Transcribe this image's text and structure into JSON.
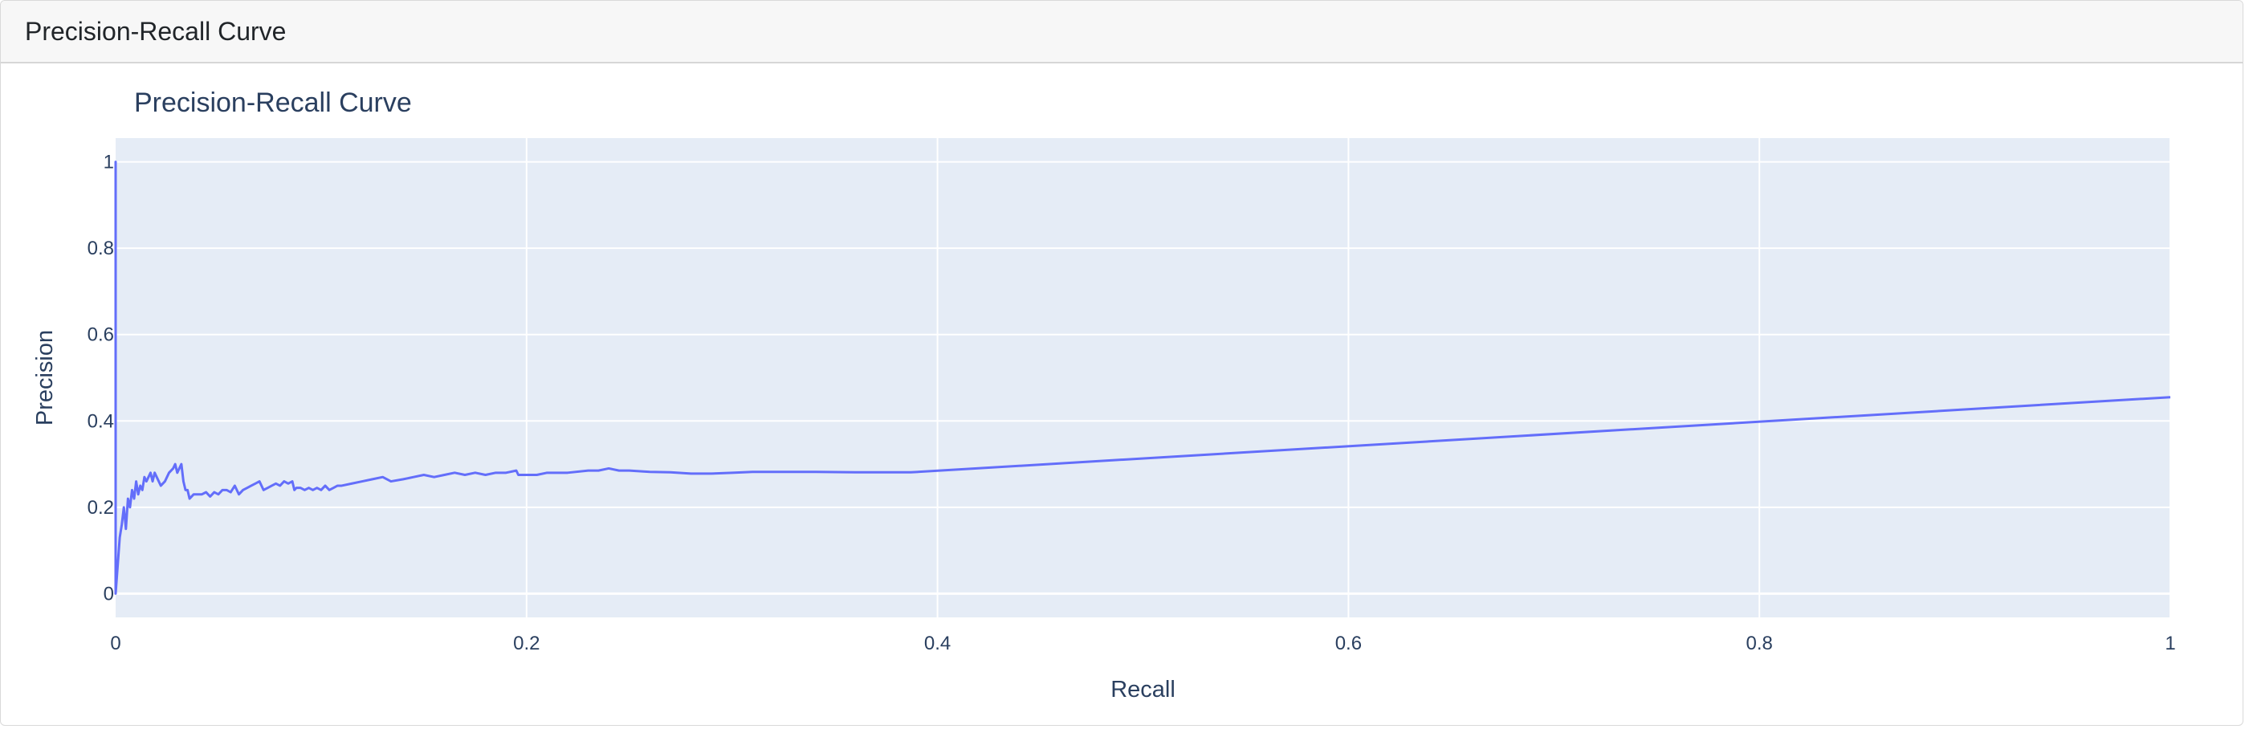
{
  "header": {
    "title": "Precision-Recall Curve"
  },
  "colors": {
    "plot_bg": "#e5ecf6",
    "grid": "#ffffff",
    "line": "#636efa",
    "text": "#2a3f5f"
  },
  "chart_data": {
    "type": "line",
    "title": "Precision-Recall Curve",
    "xlabel": "Recall",
    "ylabel": "Precision",
    "xlim": [
      0,
      1
    ],
    "ylim": [
      -0.055,
      1.055
    ],
    "grid": true,
    "xticks": [
      {
        "value": 0,
        "label": "0"
      },
      {
        "value": 0.2,
        "label": "0.2"
      },
      {
        "value": 0.4,
        "label": "0.4"
      },
      {
        "value": 0.6,
        "label": "0.6"
      },
      {
        "value": 0.8,
        "label": "0.8"
      },
      {
        "value": 1,
        "label": "1"
      }
    ],
    "yticks": [
      {
        "value": 0,
        "label": "0"
      },
      {
        "value": 0.2,
        "label": "0.2"
      },
      {
        "value": 0.4,
        "label": "0.4"
      },
      {
        "value": 0.6,
        "label": "0.6"
      },
      {
        "value": 0.8,
        "label": "0.8"
      },
      {
        "value": 1,
        "label": "1"
      }
    ],
    "series": [
      {
        "x": [
          0,
          0,
          0,
          0.002,
          0.003,
          0.004,
          0.005,
          0.006,
          0.007,
          0.008,
          0.009,
          0.01,
          0.011,
          0.012,
          0.013,
          0.014,
          0.015,
          0.016,
          0.017,
          0.018,
          0.019,
          0.02,
          0.021,
          0.022,
          0.024,
          0.026,
          0.028,
          0.029,
          0.03,
          0.031,
          0.032,
          0.033,
          0.034,
          0.035,
          0.036,
          0.038,
          0.04,
          0.042,
          0.044,
          0.046,
          0.048,
          0.05,
          0.052,
          0.054,
          0.056,
          0.058,
          0.06,
          0.062,
          0.064,
          0.066,
          0.068,
          0.07,
          0.072,
          0.074,
          0.076,
          0.078,
          0.08,
          0.082,
          0.084,
          0.086,
          0.087,
          0.088,
          0.09,
          0.092,
          0.094,
          0.096,
          0.098,
          0.1,
          0.102,
          0.104,
          0.106,
          0.108,
          0.11,
          0.115,
          0.12,
          0.125,
          0.13,
          0.134,
          0.14,
          0.145,
          0.15,
          0.155,
          0.16,
          0.165,
          0.17,
          0.175,
          0.18,
          0.185,
          0.19,
          0.195,
          0.196,
          0.2,
          0.205,
          0.21,
          0.22,
          0.23,
          0.235,
          0.24,
          0.245,
          0.25,
          0.26,
          0.27,
          0.28,
          0.29,
          0.3,
          0.31,
          0.32,
          0.34,
          0.36,
          0.387,
          1.0
        ],
        "y": [
          0,
          1.0,
          0.0,
          0.13,
          0.16,
          0.2,
          0.15,
          0.22,
          0.2,
          0.24,
          0.22,
          0.26,
          0.23,
          0.25,
          0.24,
          0.27,
          0.26,
          0.27,
          0.28,
          0.26,
          0.28,
          0.27,
          0.26,
          0.25,
          0.26,
          0.28,
          0.29,
          0.3,
          0.28,
          0.29,
          0.3,
          0.26,
          0.24,
          0.24,
          0.22,
          0.23,
          0.23,
          0.23,
          0.235,
          0.225,
          0.235,
          0.23,
          0.24,
          0.24,
          0.235,
          0.25,
          0.23,
          0.24,
          0.245,
          0.25,
          0.255,
          0.26,
          0.24,
          0.245,
          0.25,
          0.255,
          0.25,
          0.26,
          0.255,
          0.26,
          0.24,
          0.245,
          0.245,
          0.24,
          0.245,
          0.24,
          0.245,
          0.24,
          0.25,
          0.24,
          0.245,
          0.25,
          0.25,
          0.255,
          0.26,
          0.265,
          0.27,
          0.26,
          0.265,
          0.27,
          0.275,
          0.27,
          0.275,
          0.28,
          0.275,
          0.28,
          0.275,
          0.28,
          0.28,
          0.285,
          0.275,
          0.275,
          0.275,
          0.28,
          0.28,
          0.285,
          0.285,
          0.29,
          0.285,
          0.285,
          0.282,
          0.281,
          0.278,
          0.278,
          0.28,
          0.282,
          0.282,
          0.282,
          0.281,
          0.281,
          0.455
        ]
      }
    ]
  }
}
